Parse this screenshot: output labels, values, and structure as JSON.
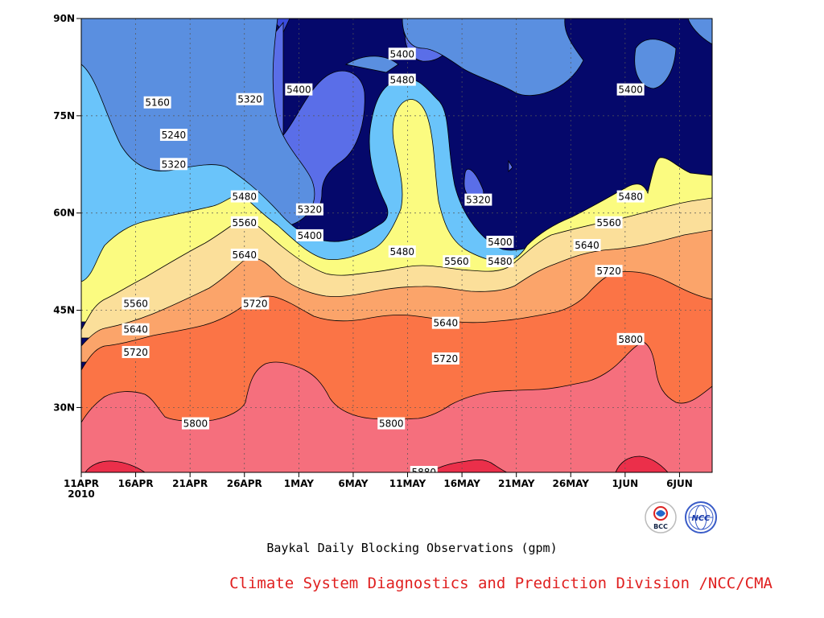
{
  "chart_data": {
    "type": "contour",
    "title": "Baykal Daily Blocking Observations (gpm)",
    "xlabel": "",
    "ylabel": "",
    "x_ticks": [
      "11APR",
      "16APR",
      "21APR",
      "26APR",
      "1MAY",
      "6MAY",
      "11MAY",
      "16MAY",
      "21MAY",
      "26MAY",
      "1JUN",
      "6JUN"
    ],
    "x_year_label": "2010",
    "y_ticks": [
      "90N",
      "75N",
      "60N",
      "45N",
      "30N"
    ],
    "ylim": [
      20,
      90
    ],
    "grid": true,
    "levels": [
      5160,
      5240,
      5320,
      5400,
      5480,
      5560,
      5640,
      5720,
      5800,
      5880
    ],
    "contour_labels": [
      {
        "day": 7.0,
        "lat": 77.0,
        "text": "5160"
      },
      {
        "day": 8.5,
        "lat": 72.0,
        "text": "5240"
      },
      {
        "day": 8.5,
        "lat": 67.5,
        "text": "5320"
      },
      {
        "day": 15.5,
        "lat": 77.5,
        "text": "5320"
      },
      {
        "day": 20.0,
        "lat": 79.0,
        "text": "5400"
      },
      {
        "day": 29.5,
        "lat": 84.5,
        "text": "5400"
      },
      {
        "day": 29.5,
        "lat": 80.5,
        "text": "5480"
      },
      {
        "day": 50.5,
        "lat": 79.0,
        "text": "5400"
      },
      {
        "day": 15.0,
        "lat": 62.5,
        "text": "5480"
      },
      {
        "day": 21.0,
        "lat": 60.5,
        "text": "5320"
      },
      {
        "day": 21.0,
        "lat": 56.5,
        "text": "5400"
      },
      {
        "day": 15.0,
        "lat": 58.5,
        "text": "5560"
      },
      {
        "day": 36.5,
        "lat": 62.0,
        "text": "5320"
      },
      {
        "day": 38.5,
        "lat": 55.5,
        "text": "5400"
      },
      {
        "day": 38.5,
        "lat": 52.5,
        "text": "5480"
      },
      {
        "day": 29.5,
        "lat": 54.0,
        "text": "5480"
      },
      {
        "day": 34.5,
        "lat": 52.5,
        "text": "5560"
      },
      {
        "day": 50.5,
        "lat": 62.5,
        "text": "5480"
      },
      {
        "day": 48.5,
        "lat": 58.5,
        "text": "5560"
      },
      {
        "day": 46.5,
        "lat": 55.0,
        "text": "5640"
      },
      {
        "day": 15.0,
        "lat": 53.5,
        "text": "5640"
      },
      {
        "day": 5.0,
        "lat": 46.0,
        "text": "5560"
      },
      {
        "day": 5.0,
        "lat": 42.0,
        "text": "5640"
      },
      {
        "day": 5.0,
        "lat": 38.5,
        "text": "5720"
      },
      {
        "day": 16.0,
        "lat": 46.0,
        "text": "5720"
      },
      {
        "day": 33.5,
        "lat": 43.0,
        "text": "5640"
      },
      {
        "day": 33.5,
        "lat": 37.5,
        "text": "5720"
      },
      {
        "day": 48.5,
        "lat": 51.0,
        "text": "5720"
      },
      {
        "day": 50.5,
        "lat": 40.5,
        "text": "5800"
      },
      {
        "day": 10.5,
        "lat": 27.5,
        "text": "5800"
      },
      {
        "day": 28.5,
        "lat": 27.5,
        "text": "5800"
      },
      {
        "day": 31.5,
        "lat": 20.0,
        "text": "5880"
      }
    ]
  },
  "credit": "Climate System Diagnostics and Prediction Division /NCC/CMA",
  "colors": {
    "lt5160": "#05086b",
    "lt5240": "#1622e6",
    "lt5320": "#3a4cde",
    "lt5400": "#5a6ee8",
    "lt5480": "#5a8fe0",
    "lt5560": "#6ac4fa",
    "lt5640": "#fbfb80",
    "lt5720": "#fbdf9a",
    "lt5800": "#fba46a",
    "lt5880": "#fb7446",
    "ge5880": "#f56f7d",
    "max": "#eb2f4a"
  },
  "logos": {
    "left_text": "BCC",
    "right_text": "NCC"
  }
}
